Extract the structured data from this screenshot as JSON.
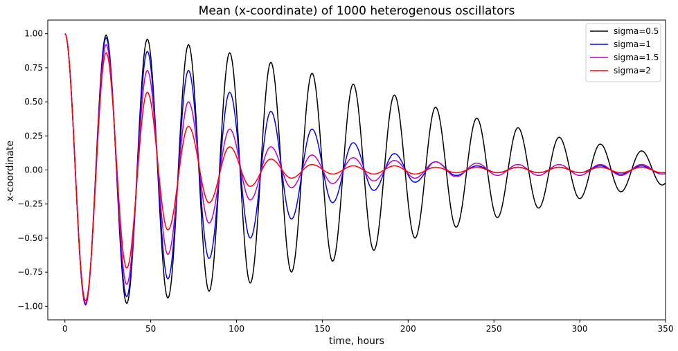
{
  "chart_data": {
    "type": "line",
    "title": "Mean (x-coordinate) of 1000 heterogenous oscillators",
    "xlabel": "time, hours",
    "ylabel": "x-coordinate",
    "xlim": [
      -10,
      350
    ],
    "ylim": [
      -1.1,
      1.1
    ],
    "xticks": [
      0,
      50,
      100,
      150,
      200,
      250,
      300,
      350
    ],
    "xtick_labels": [
      "0",
      "50",
      "100",
      "150",
      "200",
      "250",
      "300",
      "350"
    ],
    "yticks": [
      1.0,
      0.75,
      0.5,
      0.25,
      0.0,
      -0.25,
      -0.5,
      -0.75,
      -1.0
    ],
    "ytick_labels": [
      "1.00",
      "0.75",
      "0.50",
      "0.25",
      "0.00",
      "−0.25",
      "−0.50",
      "−0.75",
      "−1.00"
    ],
    "grid": false,
    "legend_position": "top-right",
    "period_hours": 24,
    "series": [
      {
        "name": "sigma=0.5",
        "color": "#000000",
        "x": [
          0,
          12,
          24,
          36,
          48,
          60,
          72,
          84,
          96,
          108,
          120,
          132,
          144,
          156,
          168,
          180,
          192,
          204,
          216,
          228,
          240,
          252,
          264,
          276,
          288,
          300,
          312,
          324,
          336,
          348
        ],
        "y": [
          1.0,
          -0.98,
          0.99,
          -0.98,
          0.96,
          -0.94,
          0.92,
          -0.89,
          0.86,
          -0.83,
          0.79,
          -0.75,
          0.71,
          -0.67,
          0.63,
          -0.59,
          0.55,
          -0.5,
          0.46,
          -0.42,
          0.38,
          -0.35,
          0.31,
          -0.28,
          0.24,
          -0.21,
          0.19,
          -0.16,
          0.14,
          -0.11
        ]
      },
      {
        "name": "sigma=1",
        "color": "#0000ff",
        "x": [
          0,
          12,
          24,
          36,
          48,
          60,
          72,
          84,
          96,
          108,
          120,
          132,
          144,
          156,
          168,
          180,
          192,
          204,
          216,
          228,
          240,
          252,
          264,
          276,
          288,
          300,
          312,
          324,
          336,
          348
        ],
        "y": [
          1.0,
          -0.99,
          0.97,
          -0.93,
          0.87,
          -0.8,
          0.73,
          -0.65,
          0.57,
          -0.5,
          0.43,
          -0.36,
          0.3,
          -0.24,
          0.2,
          -0.15,
          0.12,
          -0.09,
          0.06,
          -0.04,
          0.03,
          -0.02,
          0.02,
          -0.02,
          0.02,
          -0.02,
          0.03,
          -0.03,
          0.03,
          -0.03
        ]
      },
      {
        "name": "sigma=1.5",
        "color": "#bf00bf",
        "x": [
          0,
          12,
          24,
          36,
          48,
          60,
          72,
          84,
          96,
          108,
          120,
          132,
          144,
          156,
          168,
          180,
          192,
          204,
          216,
          228,
          240,
          252,
          264,
          276,
          288,
          300,
          312,
          324,
          336,
          348
        ],
        "y": [
          1.0,
          -0.98,
          0.92,
          -0.84,
          0.73,
          -0.62,
          0.5,
          -0.39,
          0.3,
          -0.22,
          0.17,
          -0.13,
          0.11,
          -0.1,
          0.09,
          -0.08,
          0.07,
          -0.06,
          0.06,
          -0.05,
          0.05,
          -0.04,
          0.04,
          -0.04,
          0.04,
          -0.04,
          0.04,
          -0.04,
          0.04,
          -0.03
        ]
      },
      {
        "name": "sigma=2",
        "color": "#ff0000",
        "x": [
          0,
          12,
          24,
          36,
          48,
          60,
          72,
          84,
          96,
          108,
          120,
          132,
          144,
          156,
          168,
          180,
          192,
          204,
          216,
          228,
          240,
          252,
          264,
          276,
          288,
          300,
          312,
          324,
          336,
          348
        ],
        "y": [
          1.0,
          -0.96,
          0.86,
          -0.72,
          0.57,
          -0.44,
          0.32,
          -0.24,
          0.17,
          -0.12,
          0.08,
          -0.06,
          0.04,
          -0.03,
          0.03,
          -0.03,
          0.03,
          -0.03,
          0.02,
          -0.02,
          0.02,
          -0.02,
          0.02,
          -0.02,
          0.02,
          -0.02,
          0.02,
          -0.02,
          0.02,
          -0.02
        ]
      }
    ]
  }
}
